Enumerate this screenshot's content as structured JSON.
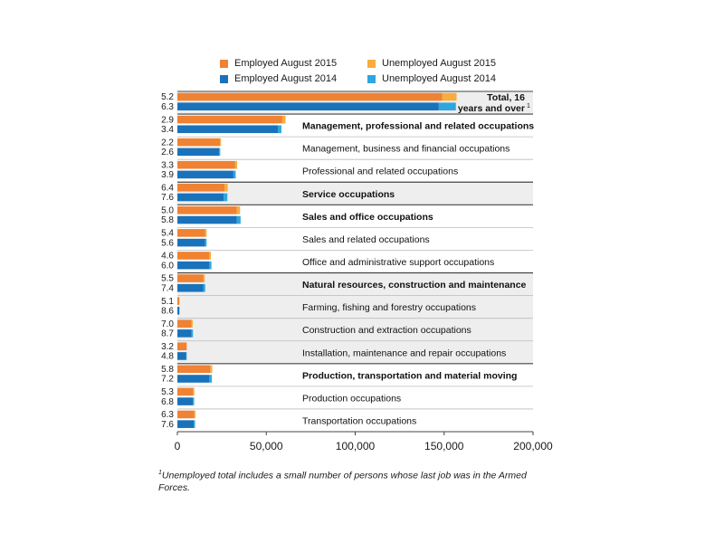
{
  "legend": [
    {
      "label": "Employed August 2015",
      "color": "#f08233"
    },
    {
      "label": "Unemployed August 2015",
      "color": "#f8ad3e"
    },
    {
      "label": "Employed August 2014",
      "color": "#1a72bb"
    },
    {
      "label": "Unemployed August 2014",
      "color": "#2fa6e0"
    }
  ],
  "footnote": {
    "marker": "1",
    "text": "Unemployed total includes a small number of persons whose last job was in the Armed Forces."
  },
  "chart_data": {
    "type": "bar",
    "orientation": "horizontal",
    "stacked": true,
    "xlim": [
      0,
      200000
    ],
    "xticks": [
      0,
      50000,
      100000,
      150000,
      200000
    ],
    "xtick_labels": [
      "0",
      "50,000",
      "100,000",
      "150,000",
      "200,000"
    ],
    "categories": [
      {
        "label": "Total, 16 years and over",
        "label_lines": [
          "Total, 16",
          "years and over"
        ],
        "footnote": "1",
        "bold": true,
        "shaded": true,
        "align": "right",
        "rate_2015": "5.2",
        "rate_2014": "6.3",
        "employed_2015": 149000,
        "unemployed_2015": 8000,
        "employed_2014": 147000,
        "unemployed_2014": 9600
      },
      {
        "label": "Management, professional and related occupations",
        "bold": true,
        "shaded": false,
        "rate_2015": "2.9",
        "rate_2014": "3.4",
        "employed_2015": 59000,
        "unemployed_2015": 1800,
        "employed_2014": 56500,
        "unemployed_2014": 2000
      },
      {
        "label": "Management, business and financial occupations",
        "bold": false,
        "shaded": false,
        "rate_2015": "2.2",
        "rate_2014": "2.6",
        "employed_2015": 24000,
        "unemployed_2015": 550,
        "employed_2014": 23500,
        "unemployed_2014": 600
      },
      {
        "label": "Professional and related occupations",
        "bold": false,
        "shaded": false,
        "rate_2015": "3.3",
        "rate_2014": "3.9",
        "employed_2015": 32500,
        "unemployed_2015": 1100,
        "employed_2014": 31500,
        "unemployed_2014": 1300
      },
      {
        "label": "Service occupations",
        "bold": true,
        "shaded": true,
        "rate_2015": "6.4",
        "rate_2014": "7.6",
        "employed_2015": 26500,
        "unemployed_2015": 1800,
        "employed_2014": 26000,
        "unemployed_2014": 2100
      },
      {
        "label": "Sales and office occupations",
        "bold": true,
        "shaded": false,
        "rate_2015": "5.0",
        "rate_2014": "5.8",
        "employed_2015": 33500,
        "unemployed_2015": 1750,
        "employed_2014": 33500,
        "unemployed_2014": 2050
      },
      {
        "label": "Sales and related occupations",
        "bold": false,
        "shaded": false,
        "rate_2015": "5.4",
        "rate_2014": "5.6",
        "employed_2015": 15500,
        "unemployed_2015": 900,
        "employed_2014": 15500,
        "unemployed_2014": 920
      },
      {
        "label": "Office and administrative support occupations",
        "bold": false,
        "shaded": false,
        "rate_2015": "4.6",
        "rate_2014": "6.0",
        "employed_2015": 18000,
        "unemployed_2015": 870,
        "employed_2014": 18000,
        "unemployed_2014": 1150
      },
      {
        "label": "Natural resources, construction and maintenance",
        "bold": true,
        "shaded": true,
        "rate_2015": "5.5",
        "rate_2014": "7.4",
        "employed_2015": 14500,
        "unemployed_2015": 850,
        "employed_2014": 14500,
        "unemployed_2014": 1150
      },
      {
        "label": "Farming, fishing and forestry occupations",
        "bold": false,
        "shaded": true,
        "rate_2015": "5.1",
        "rate_2014": "8.6",
        "employed_2015": 1100,
        "unemployed_2015": 60,
        "employed_2014": 1100,
        "unemployed_2014": 100
      },
      {
        "label": "Construction and extraction occupations",
        "bold": false,
        "shaded": true,
        "rate_2015": "7.0",
        "rate_2014": "8.7",
        "employed_2015": 8000,
        "unemployed_2015": 600,
        "employed_2014": 8000,
        "unemployed_2014": 760
      },
      {
        "label": "Installation, maintenance and repair occupations",
        "bold": false,
        "shaded": true,
        "rate_2015": "3.2",
        "rate_2014": "4.8",
        "employed_2015": 5200,
        "unemployed_2015": 170,
        "employed_2014": 5000,
        "unemployed_2014": 250
      },
      {
        "label": "Production, transportation and material moving",
        "bold": true,
        "shaded": false,
        "rate_2015": "5.8",
        "rate_2014": "7.2",
        "employed_2015": 18500,
        "unemployed_2015": 1100,
        "employed_2014": 18000,
        "unemployed_2014": 1400
      },
      {
        "label": "Production occupations",
        "bold": false,
        "shaded": false,
        "rate_2015": "5.3",
        "rate_2014": "6.8",
        "employed_2015": 9000,
        "unemployed_2015": 500,
        "employed_2014": 8800,
        "unemployed_2014": 640
      },
      {
        "label": "Transportation occupations",
        "bold": false,
        "shaded": false,
        "rate_2015": "6.3",
        "rate_2014": "7.6",
        "employed_2015": 9500,
        "unemployed_2015": 640,
        "employed_2014": 9200,
        "unemployed_2014": 760
      }
    ]
  }
}
